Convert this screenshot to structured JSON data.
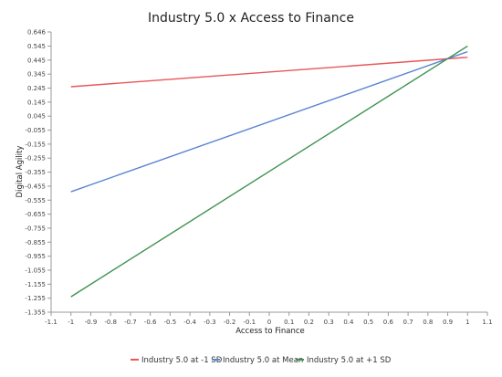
{
  "chart_data": {
    "type": "line",
    "title": "Industry 5.0 x Access to Finance",
    "xlabel": "Access to Finance",
    "ylabel": "Digital Agility",
    "xlim": [
      -1.1,
      1.1
    ],
    "ylim": [
      -1.355,
      0.646
    ],
    "x_ticks": [
      "-1.1",
      "-1",
      "-0.9",
      "-0.8",
      "-0.7",
      "-0.6",
      "-0.5",
      "-0.4",
      "-0.3",
      "-0.2",
      "-0.1",
      "0",
      "0.1",
      "0.2",
      "0.3",
      "0.4",
      "0.5",
      "0.6",
      "0.7",
      "0.8",
      "0.9",
      "1",
      "1.1"
    ],
    "x_tick_values": [
      -1.1,
      -1.0,
      -0.9,
      -0.8,
      -0.7,
      -0.6,
      -0.5,
      -0.4,
      -0.3,
      -0.2,
      -0.1,
      0,
      0.1,
      0.2,
      0.3,
      0.4,
      0.5,
      0.6,
      0.7,
      0.8,
      0.9,
      1.0,
      1.1
    ],
    "y_ticks": [
      "0.646",
      "0.545",
      "0.445",
      "0.345",
      "0.245",
      "0.145",
      "0.045",
      "-0.055",
      "-0.155",
      "-0.255",
      "-0.355",
      "-0.455",
      "-0.555",
      "-0.655",
      "-0.755",
      "-0.855",
      "-0.955",
      "-1.055",
      "-1.155",
      "-1.255",
      "-1.355"
    ],
    "y_tick_values": [
      0.646,
      0.545,
      0.445,
      0.345,
      0.245,
      0.145,
      0.045,
      -0.055,
      -0.155,
      -0.255,
      -0.355,
      -0.455,
      -0.555,
      -0.655,
      -0.755,
      -0.855,
      -0.955,
      -1.055,
      -1.155,
      -1.255,
      -1.355
    ],
    "grid": false,
    "legend_position": "bottom",
    "series": [
      {
        "name": "Industry 5.0 at -1 SD",
        "color": "#e8575a",
        "x": [
          -1,
          1
        ],
        "y": [
          0.255,
          0.465
        ]
      },
      {
        "name": "Industry 5.0 at Mean",
        "color": "#5b84d2",
        "x": [
          -1,
          1
        ],
        "y": [
          -0.495,
          0.505
        ]
      },
      {
        "name": "Industry 5.0 at +1 SD",
        "color": "#3f9150",
        "x": [
          -1,
          1
        ],
        "y": [
          -1.245,
          0.545
        ]
      }
    ]
  }
}
